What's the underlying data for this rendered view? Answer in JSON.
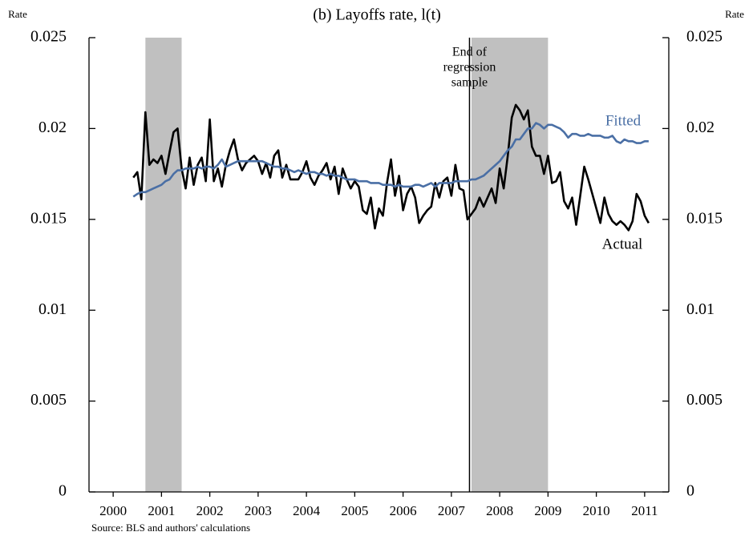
{
  "chart_data": {
    "type": "line",
    "title": "(b) Layoffs rate, l(t)",
    "ylabel": "Rate",
    "y2label": "Rate",
    "annotation": [
      "End of",
      "regression",
      "sample"
    ],
    "source": "Source: BLS and authors' calculations",
    "xlim": [
      2000,
      2012
    ],
    "xticks": [
      {
        "value": 2000.5,
        "label": "2000"
      },
      {
        "value": 2001.5,
        "label": "2001"
      },
      {
        "value": 2002.5,
        "label": "2002"
      },
      {
        "value": 2003.5,
        "label": "2003"
      },
      {
        "value": 2004.5,
        "label": "2004"
      },
      {
        "value": 2005.5,
        "label": "2005"
      },
      {
        "value": 2006.5,
        "label": "2006"
      },
      {
        "value": 2007.5,
        "label": "2007"
      },
      {
        "value": 2008.5,
        "label": "2008"
      },
      {
        "value": 2009.5,
        "label": "2009"
      },
      {
        "value": 2010.5,
        "label": "2010"
      },
      {
        "value": 2011.5,
        "label": "2011"
      }
    ],
    "ylim": [
      0,
      0.025
    ],
    "yticks": [
      0,
      0.005,
      0.01,
      0.015,
      0.02,
      0.025
    ],
    "y2lim": [
      0,
      0.025
    ],
    "y2ticks": [
      0,
      0.005,
      0.01,
      0.015,
      0.02,
      0.025
    ],
    "shaded_regions": [
      [
        2001.167,
        2001.917
      ],
      [
        2007.917,
        2009.5
      ]
    ],
    "shade_color": "#c0c0c0",
    "regression_end": 2007.875,
    "x": [
      2000.917,
      2001.0,
      2001.083,
      2001.167,
      2001.25,
      2001.333,
      2001.417,
      2001.5,
      2001.583,
      2001.667,
      2001.75,
      2001.833,
      2001.917,
      2002.0,
      2002.083,
      2002.167,
      2002.25,
      2002.333,
      2002.417,
      2002.5,
      2002.583,
      2002.667,
      2002.75,
      2002.833,
      2002.917,
      2003.0,
      2003.083,
      2003.167,
      2003.25,
      2003.333,
      2003.417,
      2003.5,
      2003.583,
      2003.667,
      2003.75,
      2003.833,
      2003.917,
      2004.0,
      2004.083,
      2004.167,
      2004.25,
      2004.333,
      2004.417,
      2004.5,
      2004.583,
      2004.667,
      2004.75,
      2004.833,
      2004.917,
      2005.0,
      2005.083,
      2005.167,
      2005.25,
      2005.333,
      2005.417,
      2005.5,
      2005.583,
      2005.667,
      2005.75,
      2005.833,
      2005.917,
      2006.0,
      2006.083,
      2006.167,
      2006.25,
      2006.333,
      2006.417,
      2006.5,
      2006.583,
      2006.667,
      2006.75,
      2006.833,
      2006.917,
      2007.0,
      2007.083,
      2007.167,
      2007.25,
      2007.333,
      2007.417,
      2007.5,
      2007.583,
      2007.667,
      2007.75,
      2007.833,
      2007.917,
      2008.0,
      2008.083,
      2008.167,
      2008.25,
      2008.333,
      2008.417,
      2008.5,
      2008.583,
      2008.667,
      2008.75,
      2008.833,
      2008.917,
      2009.0,
      2009.083,
      2009.167,
      2009.25,
      2009.333,
      2009.417,
      2009.5,
      2009.583,
      2009.667,
      2009.75,
      2009.833,
      2009.917,
      2010.0,
      2010.083,
      2010.167,
      2010.25,
      2010.333,
      2010.417,
      2010.5,
      2010.583,
      2010.667,
      2010.75,
      2010.833,
      2010.917,
      2011.0,
      2011.083,
      2011.167,
      2011.25,
      2011.333,
      2011.417,
      2011.5,
      2011.583
    ],
    "series": [
      {
        "name": "Actual",
        "color": "#000000",
        "values": [
          0.0173,
          0.0176,
          0.0161,
          0.0209,
          0.018,
          0.0183,
          0.0181,
          0.0185,
          0.0175,
          0.0187,
          0.0198,
          0.02,
          0.0178,
          0.0167,
          0.0184,
          0.0169,
          0.018,
          0.0184,
          0.0171,
          0.0205,
          0.0171,
          0.0178,
          0.0168,
          0.018,
          0.0188,
          0.0194,
          0.0183,
          0.0177,
          0.0181,
          0.0183,
          0.0185,
          0.0182,
          0.0175,
          0.0181,
          0.0173,
          0.0185,
          0.0188,
          0.0173,
          0.018,
          0.0172,
          0.0172,
          0.0172,
          0.0176,
          0.0182,
          0.0173,
          0.0169,
          0.0174,
          0.0177,
          0.0181,
          0.0172,
          0.0179,
          0.0164,
          0.0178,
          0.0172,
          0.0167,
          0.0171,
          0.0168,
          0.0155,
          0.0153,
          0.0162,
          0.0145,
          0.0156,
          0.0152,
          0.017,
          0.0183,
          0.0163,
          0.0174,
          0.0155,
          0.0164,
          0.0168,
          0.0162,
          0.0148,
          0.0152,
          0.0155,
          0.0157,
          0.017,
          0.0162,
          0.0171,
          0.0173,
          0.0163,
          0.018,
          0.0167,
          0.0166,
          0.015,
          0.0153,
          0.0156,
          0.0162,
          0.0157,
          0.0162,
          0.0167,
          0.0159,
          0.0178,
          0.0167,
          0.0185,
          0.0206,
          0.0213,
          0.021,
          0.0205,
          0.021,
          0.019,
          0.0185,
          0.0185,
          0.0175,
          0.0185,
          0.017,
          0.0171,
          0.0176,
          0.016,
          0.0156,
          0.0162,
          0.0147,
          0.0163,
          0.0179,
          0.0172,
          0.0164,
          0.0156,
          0.0148,
          0.0162,
          0.0153,
          0.0149,
          0.0147,
          0.0149,
          0.0147,
          0.0144,
          0.0149,
          0.0164,
          0.016,
          0.0152,
          0.0148
        ]
      },
      {
        "name": "Fitted",
        "color": "#4a6fa5",
        "values": [
          0.01625,
          0.0164,
          0.0165,
          0.0165,
          0.0166,
          0.0167,
          0.0168,
          0.0169,
          0.0171,
          0.0172,
          0.0175,
          0.0177,
          0.0177,
          0.0178,
          0.0178,
          0.0178,
          0.0179,
          0.0178,
          0.0179,
          0.0179,
          0.0178,
          0.018,
          0.0183,
          0.0179,
          0.018,
          0.0181,
          0.0182,
          0.0182,
          0.0182,
          0.0182,
          0.0182,
          0.0182,
          0.0182,
          0.0181,
          0.018,
          0.0179,
          0.0179,
          0.0178,
          0.0178,
          0.0177,
          0.0176,
          0.0177,
          0.0176,
          0.0175,
          0.0176,
          0.0176,
          0.0175,
          0.0175,
          0.0174,
          0.0175,
          0.0174,
          0.0174,
          0.0173,
          0.0172,
          0.0172,
          0.0172,
          0.0171,
          0.0171,
          0.0171,
          0.017,
          0.017,
          0.017,
          0.0169,
          0.0169,
          0.0169,
          0.0168,
          0.0169,
          0.0168,
          0.0168,
          0.0168,
          0.0169,
          0.0169,
          0.0168,
          0.0169,
          0.017,
          0.0168,
          0.017,
          0.017,
          0.017,
          0.017,
          0.0171,
          0.0171,
          0.0171,
          0.0171,
          0.0172,
          0.0172,
          0.0173,
          0.0174,
          0.0176,
          0.0178,
          0.018,
          0.0182,
          0.0185,
          0.0188,
          0.019,
          0.0194,
          0.0194,
          0.0197,
          0.02,
          0.02,
          0.0203,
          0.0202,
          0.02,
          0.0202,
          0.0202,
          0.0201,
          0.02,
          0.0198,
          0.0195,
          0.0197,
          0.0197,
          0.0196,
          0.0196,
          0.0197,
          0.0196,
          0.0196,
          0.0196,
          0.0195,
          0.0195,
          0.0196,
          0.0193,
          0.0192,
          0.0194,
          0.0193,
          0.0193,
          0.0192,
          0.0192,
          0.0193,
          0.0193
        ]
      }
    ]
  }
}
